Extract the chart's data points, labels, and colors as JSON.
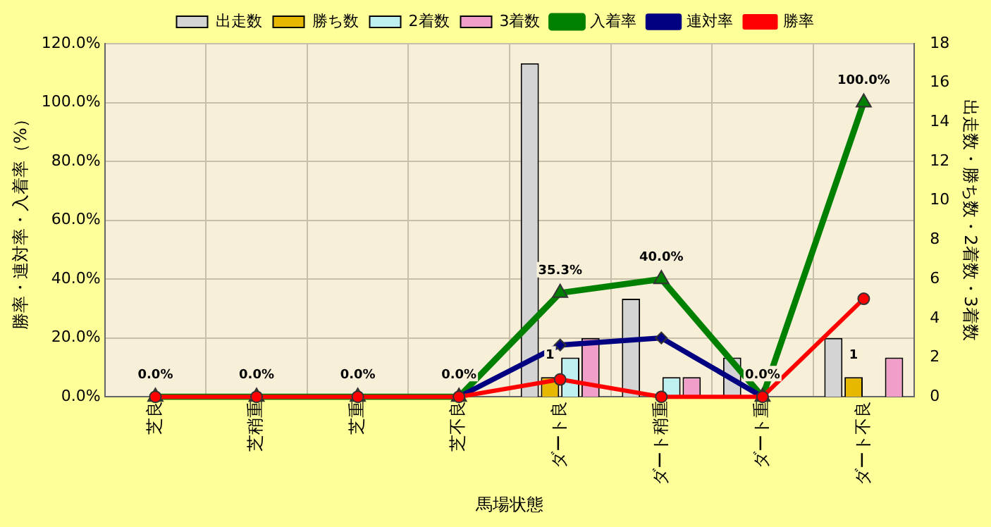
{
  "chart_data": {
    "type": "bar",
    "xlabel": "馬場状態",
    "ylabel": "勝率・連対率・入着率（%）",
    "y2label": "出走数・勝ち数・2着数・3着数",
    "categories": [
      "芝良",
      "芝稍重",
      "芝重",
      "芝不良",
      "ダート良",
      "ダート稍重",
      "ダート重",
      "ダート不良"
    ],
    "series": [
      {
        "name": "出走数",
        "axis": "y2",
        "color": "#d4d4d4",
        "values": [
          0,
          0,
          0,
          0,
          17,
          5,
          2,
          3
        ]
      },
      {
        "name": "勝ち数",
        "axis": "y2",
        "color": "#e6b800",
        "values": [
          0,
          0,
          0,
          0,
          1,
          0,
          0,
          1
        ],
        "value_labels": [
          null,
          null,
          null,
          null,
          "1",
          null,
          null,
          "1"
        ]
      },
      {
        "name": "2着数",
        "axis": "y2",
        "color": "#bff0f0",
        "values": [
          0,
          0,
          0,
          0,
          2,
          1,
          0,
          0
        ]
      },
      {
        "name": "3着数",
        "axis": "y2",
        "color": "#f0a0c8",
        "values": [
          0,
          0,
          0,
          0,
          3,
          1,
          0,
          2
        ]
      },
      {
        "name": "入着率",
        "type": "line",
        "color": "#008000",
        "marker": "triangle",
        "values": [
          0,
          0,
          0,
          0,
          35.3,
          40,
          0,
          100
        ],
        "value_labels": [
          "0.0%",
          "0.0%",
          "0.0%",
          "0.0%",
          "35.3%",
          "40.0%",
          "0.0%",
          "100.0%"
        ]
      },
      {
        "name": "連対率",
        "type": "line",
        "color": "#000080",
        "marker": "diamond",
        "values": [
          null,
          null,
          null,
          0,
          17.6,
          20,
          0,
          null
        ]
      },
      {
        "name": "勝率",
        "type": "line",
        "color": "#ff0000",
        "marker": "circle",
        "values": [
          0,
          0,
          0,
          0,
          5.9,
          0,
          0,
          33.3
        ]
      }
    ],
    "ylim": [
      0,
      120
    ],
    "yticks": [
      {
        "value": 0,
        "label": "0.0%"
      },
      {
        "value": 20,
        "label": "20.0%"
      },
      {
        "value": 40,
        "label": "40.0%"
      },
      {
        "value": 60,
        "label": "60.0%"
      },
      {
        "value": 80,
        "label": "80.0%"
      },
      {
        "value": 100,
        "label": "100.0%"
      },
      {
        "value": 120,
        "label": "120.0%"
      }
    ],
    "y2lim": [
      0,
      18
    ],
    "y2ticks": [
      0,
      2,
      4,
      6,
      8,
      10,
      12,
      14,
      16,
      18
    ],
    "grid": true,
    "legend": "top"
  }
}
